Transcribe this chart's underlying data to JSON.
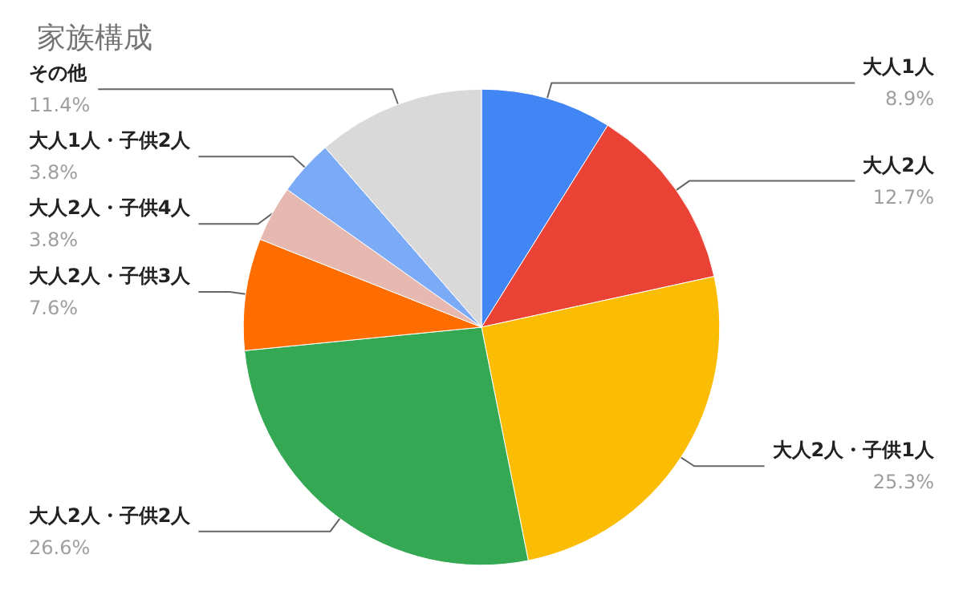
{
  "chart_data": {
    "type": "pie",
    "title": "家族構成",
    "categories": [
      "大人1人",
      "大人2人",
      "大人2人・子供1人",
      "大人2人・子供2人",
      "大人2人・子供3人",
      "大人2人・子供4人",
      "大人1人・子供2人",
      "その他"
    ],
    "values": [
      8.9,
      12.7,
      25.3,
      26.6,
      7.6,
      3.8,
      3.8,
      11.4
    ],
    "value_labels": [
      "8.9%",
      "12.7%",
      "25.3%",
      "26.6%",
      "7.6%",
      "3.8%",
      "3.8%",
      "11.4%"
    ],
    "colors": [
      "#4285f4",
      "#ea4335",
      "#fbbc04",
      "#34a853",
      "#ff6d01",
      "#e6b8af",
      "#7baaf7",
      "#d9d9d9"
    ],
    "legend": false
  }
}
